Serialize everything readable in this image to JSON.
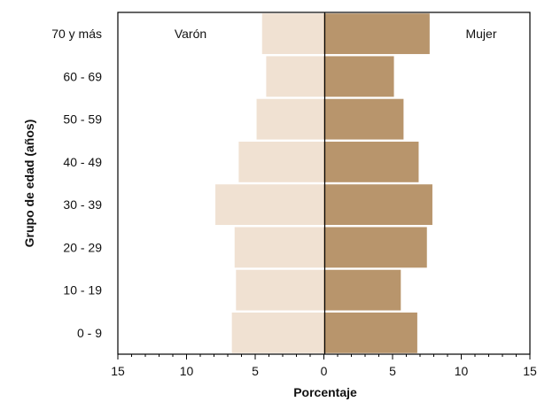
{
  "chart_data": {
    "type": "bar",
    "subtype": "population-pyramid",
    "categories": [
      "0 - 9",
      "10 - 19",
      "20 - 29",
      "30 - 39",
      "40 - 49",
      "50 - 59",
      "60 - 69",
      "70 y más"
    ],
    "series": [
      {
        "name": "Varón",
        "side": "left",
        "color": "#f0e1d2",
        "values": [
          6.7,
          6.4,
          6.5,
          7.9,
          6.2,
          4.9,
          4.2,
          4.5
        ]
      },
      {
        "name": "Mujer",
        "side": "right",
        "color": "#b8956c",
        "values": [
          6.8,
          5.6,
          7.5,
          7.9,
          6.9,
          5.8,
          5.1,
          7.7
        ]
      }
    ],
    "xlabel": "Porcentaje",
    "ylabel": "Grupo de edad (años)",
    "xlim": [
      -15,
      15
    ],
    "xticks": [
      -15,
      -10,
      -5,
      0,
      5,
      10,
      15
    ],
    "xtick_labels": [
      "15",
      "10",
      "5",
      "0",
      "5",
      "10",
      "15"
    ],
    "minor_tick_step": 1,
    "grid": false,
    "legend_placement": "inside-top"
  }
}
